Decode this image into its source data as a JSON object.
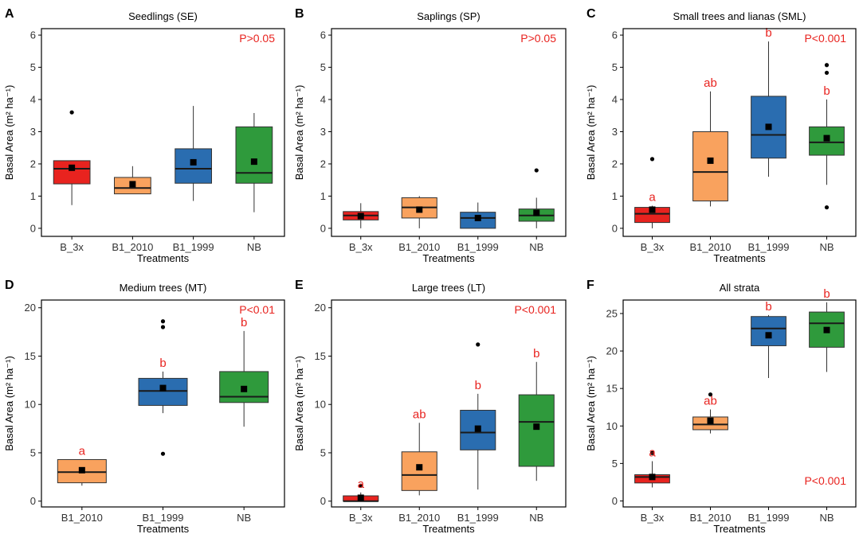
{
  "colors": {
    "B_3x": "#e8231f",
    "B1_2010": "#f9a25e",
    "B1_1999": "#2a6db0",
    "NB": "#2f9a3c",
    "annotation": "#e8231f",
    "axis": "#000000"
  },
  "chart_data": [
    {
      "type": "box",
      "panel_letter": "A",
      "title": "Seedlings (SE)",
      "ylabel": "Basal Area (m² ha⁻¹)",
      "xlabel": "Treatments",
      "ylim": [
        -0.25,
        6.2
      ],
      "yticks": [
        0,
        1,
        2,
        3,
        4,
        5,
        6
      ],
      "p_text": "P>0.05",
      "p_position": "top-right",
      "categories": [
        "B_3x",
        "B1_2010",
        "B1_1999",
        "NB"
      ],
      "boxes": [
        {
          "q1": 1.38,
          "median": 1.85,
          "q3": 2.1,
          "whisker_low": 0.72,
          "whisker_high": 2.1,
          "mean": 1.88,
          "outliers": [
            3.6
          ],
          "letter": ""
        },
        {
          "q1": 1.07,
          "median": 1.25,
          "q3": 1.58,
          "whisker_low": 1.07,
          "whisker_high": 1.93,
          "mean": 1.37,
          "outliers": [],
          "letter": ""
        },
        {
          "q1": 1.4,
          "median": 1.85,
          "q3": 2.47,
          "whisker_low": 0.85,
          "whisker_high": 3.8,
          "mean": 2.05,
          "outliers": [],
          "letter": ""
        },
        {
          "q1": 1.4,
          "median": 1.72,
          "q3": 3.15,
          "whisker_low": 0.5,
          "whisker_high": 3.58,
          "mean": 2.07,
          "outliers": [],
          "letter": ""
        }
      ]
    },
    {
      "type": "box",
      "panel_letter": "B",
      "title": "Saplings (SP)",
      "ylabel": "Basal Area (m² ha⁻¹)",
      "xlabel": "Treatments",
      "ylim": [
        -0.25,
        6.2
      ],
      "yticks": [
        0,
        1,
        2,
        3,
        4,
        5,
        6
      ],
      "p_text": "P>0.05",
      "p_position": "top-right",
      "categories": [
        "B_3x",
        "B1_2010",
        "B1_1999",
        "NB"
      ],
      "boxes": [
        {
          "q1": 0.26,
          "median": 0.4,
          "q3": 0.52,
          "whisker_low": 0.0,
          "whisker_high": 0.78,
          "mean": 0.38,
          "outliers": [],
          "letter": ""
        },
        {
          "q1": 0.32,
          "median": 0.65,
          "q3": 0.95,
          "whisker_low": 0.0,
          "whisker_high": 1.0,
          "mean": 0.58,
          "outliers": [],
          "letter": ""
        },
        {
          "q1": 0.0,
          "median": 0.32,
          "q3": 0.5,
          "whisker_low": 0.0,
          "whisker_high": 0.8,
          "mean": 0.32,
          "outliers": [],
          "letter": ""
        },
        {
          "q1": 0.22,
          "median": 0.4,
          "q3": 0.6,
          "whisker_low": 0.0,
          "whisker_high": 0.95,
          "mean": 0.48,
          "outliers": [
            1.8
          ],
          "letter": ""
        }
      ]
    },
    {
      "type": "box",
      "panel_letter": "C",
      "title": "Small trees and lianas (SML)",
      "ylabel": "Basal Area (m² ha⁻¹)",
      "xlabel": "Treatments",
      "ylim": [
        -0.25,
        6.2
      ],
      "yticks": [
        0,
        1,
        2,
        3,
        4,
        5,
        6
      ],
      "p_text": "P<0.001",
      "p_position": "top-right",
      "categories": [
        "B_3x",
        "B1_2010",
        "B1_1999",
        "NB"
      ],
      "boxes": [
        {
          "q1": 0.18,
          "median": 0.45,
          "q3": 0.65,
          "whisker_low": 0.0,
          "whisker_high": 0.7,
          "mean": 0.58,
          "outliers": [
            2.15
          ],
          "letter": "a"
        },
        {
          "q1": 0.85,
          "median": 1.75,
          "q3": 3.0,
          "whisker_low": 0.68,
          "whisker_high": 4.25,
          "mean": 2.1,
          "outliers": [],
          "letter": "ab"
        },
        {
          "q1": 2.18,
          "median": 2.9,
          "q3": 4.1,
          "whisker_low": 1.6,
          "whisker_high": 5.8,
          "mean": 3.15,
          "outliers": [],
          "letter": "b"
        },
        {
          "q1": 2.27,
          "median": 2.67,
          "q3": 3.15,
          "whisker_low": 1.35,
          "whisker_high": 4.0,
          "mean": 2.8,
          "outliers": [
            5.07,
            4.83,
            0.65
          ],
          "letter": "b"
        }
      ]
    },
    {
      "type": "box",
      "panel_letter": "D",
      "title": "Medium trees (MT)",
      "ylabel": "Basal Area (m² ha⁻¹)",
      "xlabel": "Treatments",
      "ylim": [
        -0.6,
        20.8
      ],
      "yticks": [
        0,
        5,
        10,
        15,
        20
      ],
      "p_text": "P<0.01",
      "p_position": "top-right",
      "categories": [
        "B1_2010",
        "B1_1999",
        "NB"
      ],
      "boxes": [
        {
          "q1": 1.9,
          "median": 3.0,
          "q3": 4.3,
          "whisker_low": 1.6,
          "whisker_high": 4.3,
          "mean": 3.2,
          "outliers": [],
          "letter": "a"
        },
        {
          "q1": 9.9,
          "median": 11.4,
          "q3": 12.7,
          "whisker_low": 9.1,
          "whisker_high": 13.4,
          "mean": 11.7,
          "outliers": [
            18.6,
            18.0,
            4.9
          ],
          "letter": "b"
        },
        {
          "q1": 10.2,
          "median": 10.8,
          "q3": 13.4,
          "whisker_low": 7.7,
          "whisker_high": 17.6,
          "mean": 11.6,
          "outliers": [],
          "letter": "b"
        }
      ]
    },
    {
      "type": "box",
      "panel_letter": "E",
      "title": "Large trees (LT)",
      "ylabel": "Basal Area (m² ha⁻¹)",
      "xlabel": "Treatments",
      "ylim": [
        -0.6,
        20.8
      ],
      "yticks": [
        0,
        5,
        10,
        15,
        20
      ],
      "p_text": "P<0.001",
      "p_position": "top-right",
      "categories": [
        "B_3x",
        "B1_2010",
        "B1_1999",
        "NB"
      ],
      "boxes": [
        {
          "q1": 0.0,
          "median": 0.0,
          "q3": 0.55,
          "whisker_low": 0.0,
          "whisker_high": 0.9,
          "mean": 0.35,
          "outliers": [
            1.6
          ],
          "letter": "a"
        },
        {
          "q1": 1.1,
          "median": 2.7,
          "q3": 5.1,
          "whisker_low": 0.6,
          "whisker_high": 8.1,
          "mean": 3.5,
          "outliers": [],
          "letter": "ab"
        },
        {
          "q1": 5.3,
          "median": 7.1,
          "q3": 9.4,
          "whisker_low": 1.2,
          "whisker_high": 11.1,
          "mean": 7.5,
          "outliers": [
            16.2
          ],
          "letter": "b"
        },
        {
          "q1": 3.6,
          "median": 8.2,
          "q3": 11.0,
          "whisker_low": 2.1,
          "whisker_high": 14.4,
          "mean": 7.7,
          "outliers": [],
          "letter": "b"
        }
      ]
    },
    {
      "type": "box",
      "panel_letter": "F",
      "title": "All strata",
      "ylabel": "Basal Area (m² ha⁻¹)",
      "xlabel": "Treatments",
      "ylim": [
        -0.8,
        26.8
      ],
      "yticks": [
        0,
        5,
        10,
        15,
        20,
        25
      ],
      "p_text": "P<0.001",
      "p_position": "bottom-right",
      "categories": [
        "B_3x",
        "B1_2010",
        "B1_1999",
        "NB"
      ],
      "boxes": [
        {
          "q1": 2.4,
          "median": 3.2,
          "q3": 3.5,
          "whisker_low": 1.8,
          "whisker_high": 5.3,
          "mean": 3.2,
          "outliers": [
            6.4
          ],
          "letter": "a"
        },
        {
          "q1": 9.5,
          "median": 10.2,
          "q3": 11.2,
          "whisker_low": 9.0,
          "whisker_high": 12.2,
          "mean": 10.7,
          "outliers": [
            14.2
          ],
          "letter": "ab"
        },
        {
          "q1": 20.7,
          "median": 23.0,
          "q3": 24.6,
          "whisker_low": 16.4,
          "whisker_high": 24.8,
          "mean": 22.1,
          "outliers": [],
          "letter": "b"
        },
        {
          "q1": 20.5,
          "median": 23.7,
          "q3": 25.2,
          "whisker_low": 17.2,
          "whisker_high": 26.5,
          "mean": 22.8,
          "outliers": [],
          "letter": "b"
        }
      ]
    }
  ]
}
